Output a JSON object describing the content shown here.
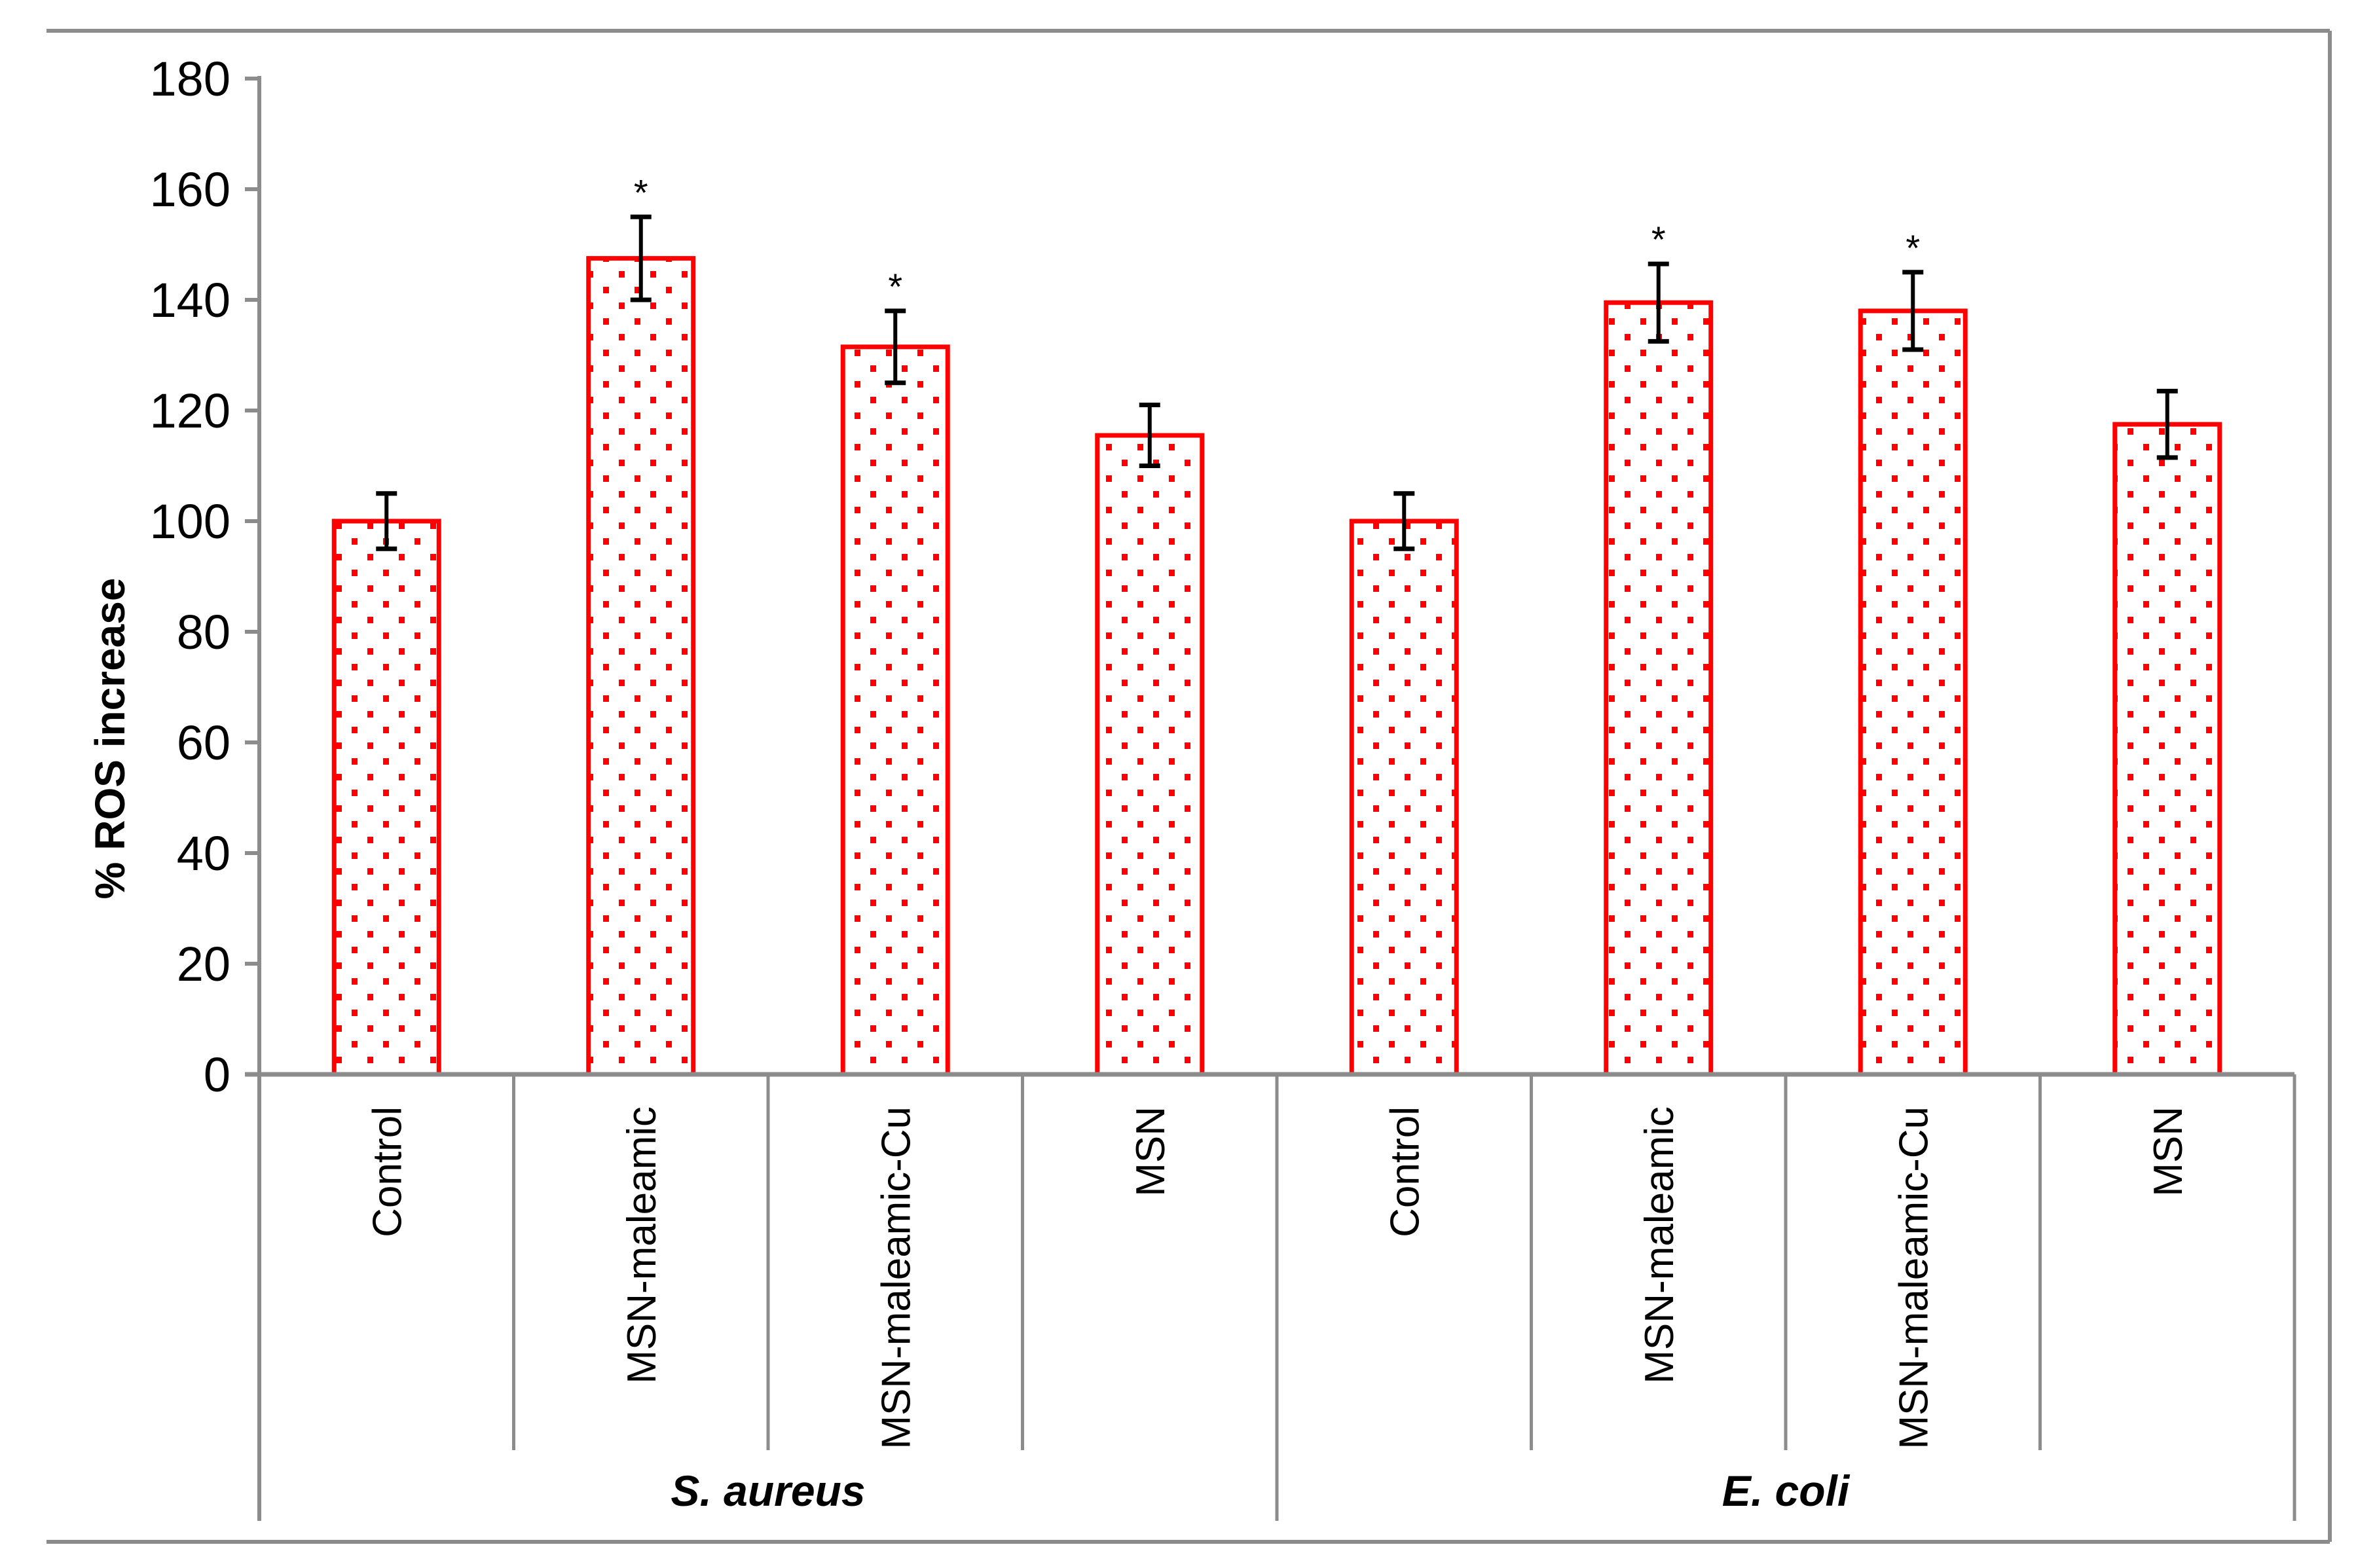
{
  "chart_data": {
    "type": "bar",
    "title": "",
    "ylabel": "% ROS increase",
    "xlabel": "",
    "ylim": [
      0,
      180
    ],
    "yticks": [
      0,
      20,
      40,
      60,
      80,
      100,
      120,
      140,
      160,
      180
    ],
    "grid": false,
    "legend": null,
    "significance_marker": "*",
    "axis_color": "#8c8c8c",
    "bar_color_outline": "#fe0000",
    "bar_dot_color": "#fe0000",
    "bar_fill": "#ffffff",
    "error_bar_color": "#000000",
    "groups": [
      {
        "label": "S. aureus",
        "series": [
          {
            "category": "Control",
            "value": 100,
            "error": 5,
            "significant": false
          },
          {
            "category": "MSN-maleamic",
            "value": 147.5,
            "error": 7.5,
            "significant": true
          },
          {
            "category": "MSN-maleamic-Cu",
            "value": 131.5,
            "error": 6.5,
            "significant": true
          },
          {
            "category": "MSN",
            "value": 115.5,
            "error": 5.5,
            "significant": false
          }
        ]
      },
      {
        "label": "E. coli",
        "series": [
          {
            "category": "Control",
            "value": 100,
            "error": 5,
            "significant": false
          },
          {
            "category": "MSN-maleamic",
            "value": 139.5,
            "error": 7,
            "significant": true
          },
          {
            "category": "MSN-maleamic-Cu",
            "value": 138,
            "error": 7,
            "significant": true
          },
          {
            "category": "MSN",
            "value": 117.5,
            "error": 6,
            "significant": false
          }
        ]
      }
    ]
  }
}
